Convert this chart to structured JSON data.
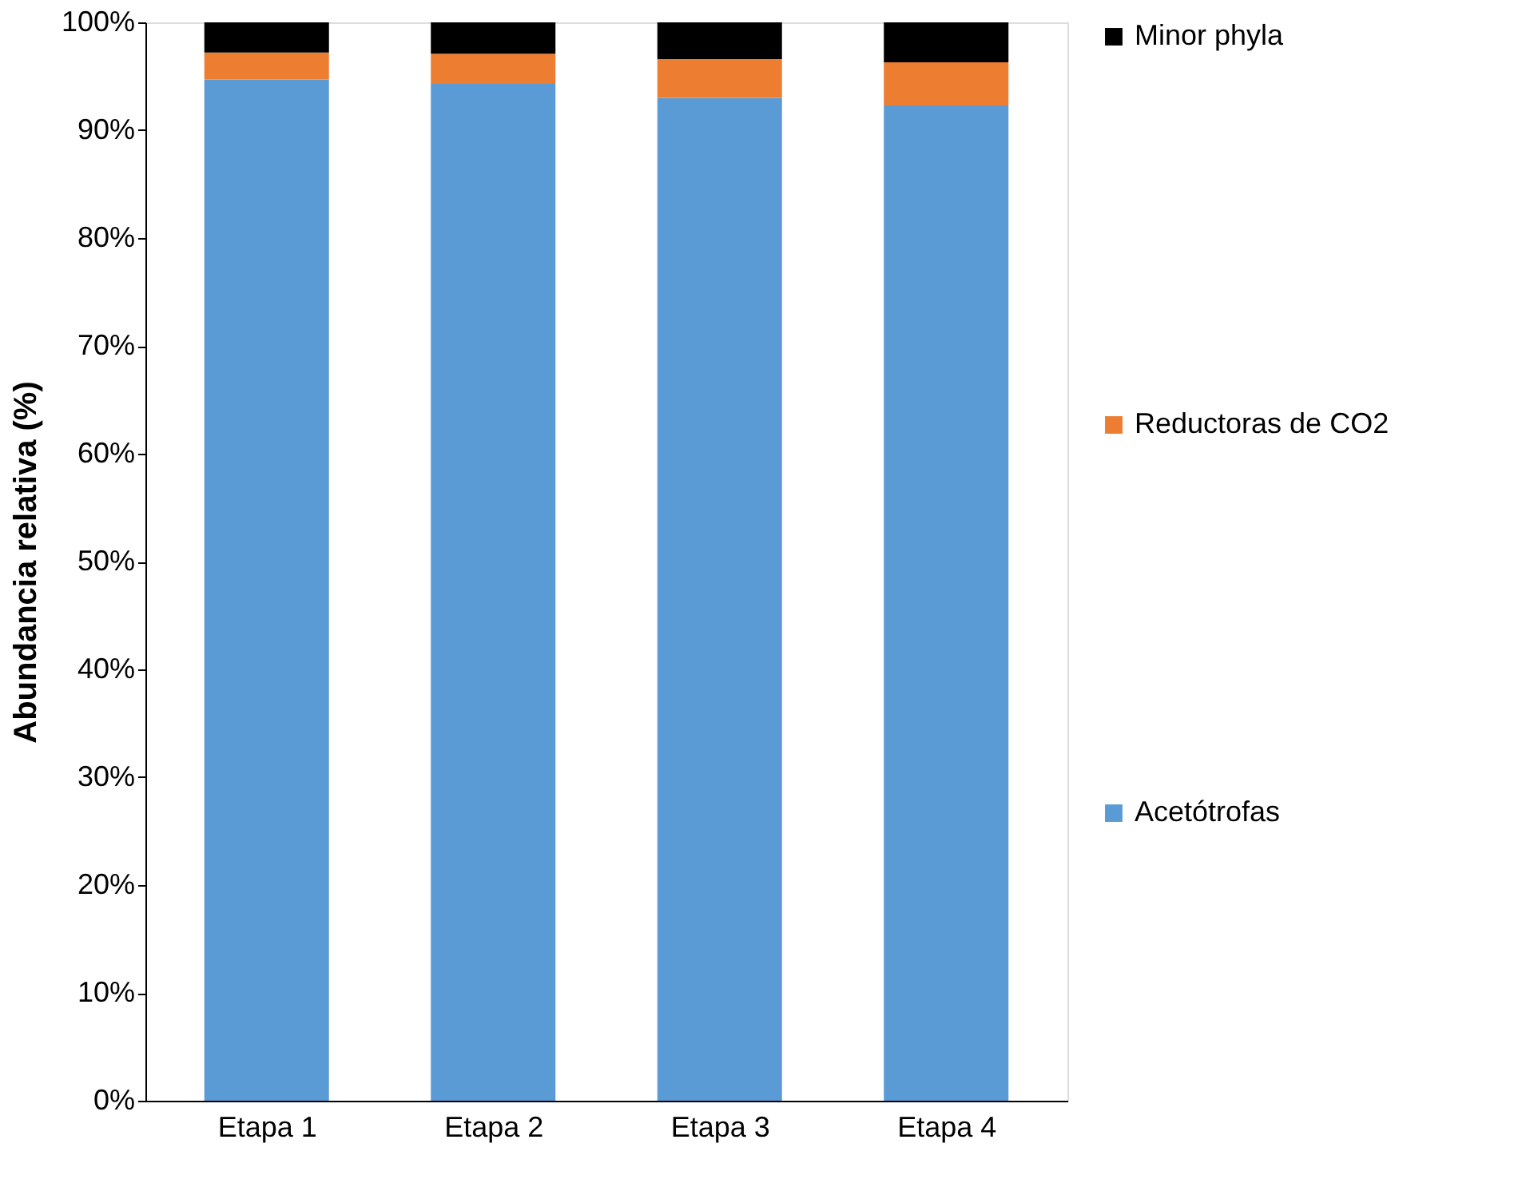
{
  "chart_data": {
    "type": "bar",
    "stacked": true,
    "ylabel": "Abundancia relativa (%)",
    "categories": [
      "Etapa 1",
      "Etapa 2",
      "Etapa 3",
      "Etapa 4"
    ],
    "series": [
      {
        "name": "Acetótrofas",
        "color": "#5b9bd5",
        "values": [
          94.7,
          94.3,
          93.0,
          92.3
        ]
      },
      {
        "name": "Reductoras de CO2",
        "color": "#ed7d31",
        "values": [
          2.5,
          2.8,
          3.6,
          4.0
        ]
      },
      {
        "name": "Minor phyla",
        "color": "#000000",
        "values": [
          2.8,
          2.9,
          3.4,
          3.7
        ]
      }
    ],
    "ylim": [
      0,
      100
    ],
    "yticks": [
      {
        "value": 0,
        "label": "0%"
      },
      {
        "value": 10,
        "label": "10%"
      },
      {
        "value": 20,
        "label": "20%"
      },
      {
        "value": 30,
        "label": "30%"
      },
      {
        "value": 40,
        "label": "40%"
      },
      {
        "value": 50,
        "label": "50%"
      },
      {
        "value": 60,
        "label": "60%"
      },
      {
        "value": 70,
        "label": "70%"
      },
      {
        "value": 80,
        "label": "80%"
      },
      {
        "value": 90,
        "label": "90%"
      },
      {
        "value": 100,
        "label": "100%"
      }
    ],
    "grid": false,
    "legend": "right"
  }
}
